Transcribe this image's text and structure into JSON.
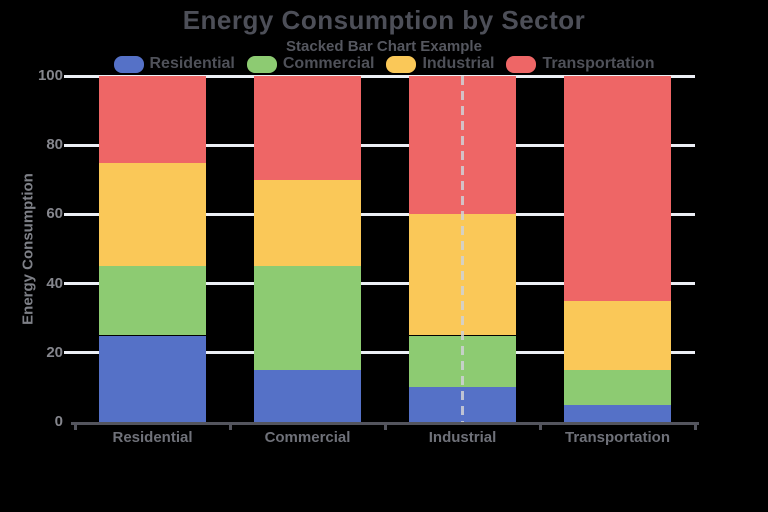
{
  "chart_data": {
    "type": "bar",
    "stacked": true,
    "title": "Energy Consumption by Sector",
    "subtitle": "Stacked Bar Chart Example",
    "xlabel": "",
    "ylabel": "Energy Consumption",
    "categories": [
      "Residential",
      "Commercial",
      "Industrial",
      "Transportation"
    ],
    "series": [
      {
        "name": "Residential",
        "color": "#5571C7",
        "values": [
          25,
          15,
          10,
          5
        ]
      },
      {
        "name": "Commercial",
        "color": "#8DCB72",
        "values": [
          20,
          30,
          15,
          10
        ]
      },
      {
        "name": "Industrial",
        "color": "#FAC858",
        "values": [
          30,
          25,
          35,
          20
        ]
      },
      {
        "name": "Transportation",
        "color": "#EE6666",
        "values": [
          25,
          30,
          40,
          65
        ]
      }
    ],
    "ylim": [
      0,
      100
    ],
    "yticks": [
      0,
      20,
      40,
      60,
      80,
      100
    ],
    "grid": true,
    "legend_position": "top",
    "annotations": [
      {
        "type": "vertical_dashed_line",
        "category": "Industrial"
      }
    ]
  },
  "colors": {
    "background": "#000000",
    "grid": "#ECEFF5",
    "axis": "#54555E",
    "title_text": "#4D4F58",
    "subtitle_text": "#55575F",
    "legend_text": "#4F5159",
    "ytick_text": "#85868D",
    "xtick_text": "#6F7179",
    "ylabel_text": "#7E8087",
    "dashed_line": "#CFD1D6"
  }
}
